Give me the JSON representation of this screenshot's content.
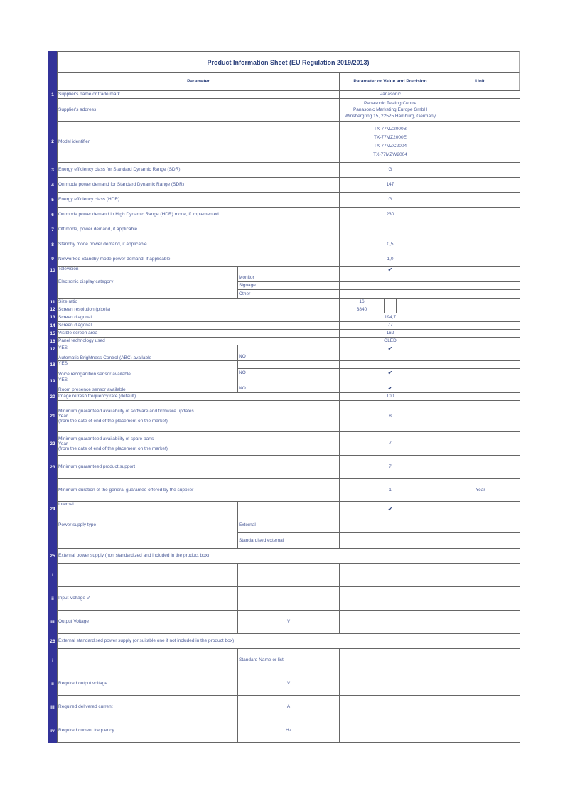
{
  "title": "Product Information Sheet (EU Regulation 2019/2013)",
  "header": {
    "parameter": "Parameter",
    "value": "Parameter or Value and Precision",
    "unit": "Unit"
  },
  "colors": {
    "accent": "#333399",
    "text": "#4d5d99",
    "heading": "#2a3f7a"
  },
  "rows": [
    {
      "n": "1",
      "p": "Supplier's name or trade mark",
      "v": "Panasonic"
    },
    {
      "n": "",
      "p": "Supplier's address",
      "v": [
        "Panasonic Testing Centre",
        "Panasonic Marketing Europe GmbH",
        "Winsbergring 15, 22525 Hamburg, Germany"
      ]
    },
    {
      "n": "2",
      "p": "Model identifier",
      "v": [
        "TX-77MZ2000B",
        "TX-77MZ2000E",
        "TX-77MZC2004",
        "TX-77MZW2004"
      ]
    },
    {
      "n": "3",
      "p": "Energy efficiency class for Standard Dynamic Range (SDR)",
      "v": "G"
    },
    {
      "n": "4",
      "p": "On mode power demand for Standard Dynamic Range (SDR)",
      "v": "147"
    },
    {
      "n": "5",
      "p": "Energy efficiency class (HDR)",
      "v": "G"
    },
    {
      "n": "6",
      "p": "On mode power demand in High Dynamic Range (HDR) mode, if implemented",
      "v": "230"
    },
    {
      "n": "7",
      "p": "Off mode, power demand, if applicable",
      "v": ""
    },
    {
      "n": "8",
      "p": "Standby mode power demand, if applicable",
      "v": "0,5"
    },
    {
      "n": "9",
      "p": "Networked Standby mode power demand, if applicable",
      "v": "1,0"
    },
    {
      "n": "10",
      "p": "Television",
      "p2": "Electronic display category",
      "s": "",
      "v": "✔"
    },
    {
      "n": "",
      "s": "Monitor",
      "v": ""
    },
    {
      "n": "",
      "s": "Signage",
      "v": ""
    },
    {
      "n": "",
      "s": "Other",
      "v": ""
    },
    {
      "n": "11",
      "p": "Size ratio",
      "v": "16"
    },
    {
      "n": "12",
      "p": "Screen resolution (pixels)",
      "v": "3840"
    },
    {
      "n": "13",
      "p": "Screen diagonal",
      "v": "194,7"
    },
    {
      "n": "14",
      "p": "Screen diagonal",
      "v": "77"
    },
    {
      "n": "15",
      "p": "Visible screen area",
      "v": "162"
    },
    {
      "n": "16",
      "p": "Panel technology used",
      "v": "OLED"
    },
    {
      "n": "17",
      "p": "YES",
      "p2": "Automatic Brightness Control (ABC) available",
      "s": "",
      "v": "✔"
    },
    {
      "n": "",
      "s": "NO",
      "v": ""
    },
    {
      "n": "18",
      "p": "YES",
      "p2": "Voice recoganition sensor available",
      "s": "",
      "v": ""
    },
    {
      "n": "",
      "s": "NO",
      "v": "✔"
    },
    {
      "n": "19",
      "p": "YES",
      "p2": "Room presence sensor available",
      "s": "",
      "v": ""
    },
    {
      "n": "",
      "s": "NO",
      "v": "✔"
    },
    {
      "n": "20",
      "p": "Image refresh frequency rate (default)",
      "v": "100"
    },
    {
      "n": "21",
      "p": "Minimum guaranteed availability of software and firmware updates",
      "p3": "(from the date of end of the placement on the market)",
      "tiny": "Year",
      "v": "8"
    },
    {
      "n": "22",
      "p": "Minimum guaranteed availability of spare parts",
      "p3": "(from the date of end of the placement on the market)",
      "tiny": "Year",
      "v": "7"
    },
    {
      "n": "23",
      "p": "Minimum guaranteed product support",
      "v": "7"
    },
    {
      "n": "",
      "p": "Minimum duration of the general guarantee offered by the supplier",
      "v": "1",
      "u": "Year"
    },
    {
      "n": "24",
      "p": "Internal",
      "p2": "Power supply type",
      "s": "",
      "v": "✔"
    },
    {
      "n": "",
      "s": "External",
      "v": ""
    },
    {
      "n": "",
      "s": "Standardised external",
      "v": ""
    },
    {
      "n": "25",
      "p": "External power supply (non standardized and included in the product box)",
      "full": true
    },
    {
      "n": "i",
      "p": "",
      "s": "",
      "v": ""
    },
    {
      "n": "ii",
      "p": "Input Voltage V",
      "s": "",
      "v": ""
    },
    {
      "n": "iii",
      "p": "Output Voltage",
      "s": "V",
      "sc": true,
      "v": ""
    },
    {
      "n": "26",
      "p": "External standardised  power supply (or suitable one if not included in the product box)",
      "full": true
    },
    {
      "n": "i",
      "p": "",
      "s": "Standard Name or list",
      "v": ""
    },
    {
      "n": "ii",
      "p": "Required output voltage",
      "s": "V",
      "sc": true,
      "v": ""
    },
    {
      "n": "iii",
      "p": "Required delivered current",
      "s": "A",
      "sc": true,
      "v": ""
    },
    {
      "n": "iv",
      "p": "Required current frequency",
      "s": "Hz",
      "sc": true,
      "v": ""
    }
  ]
}
